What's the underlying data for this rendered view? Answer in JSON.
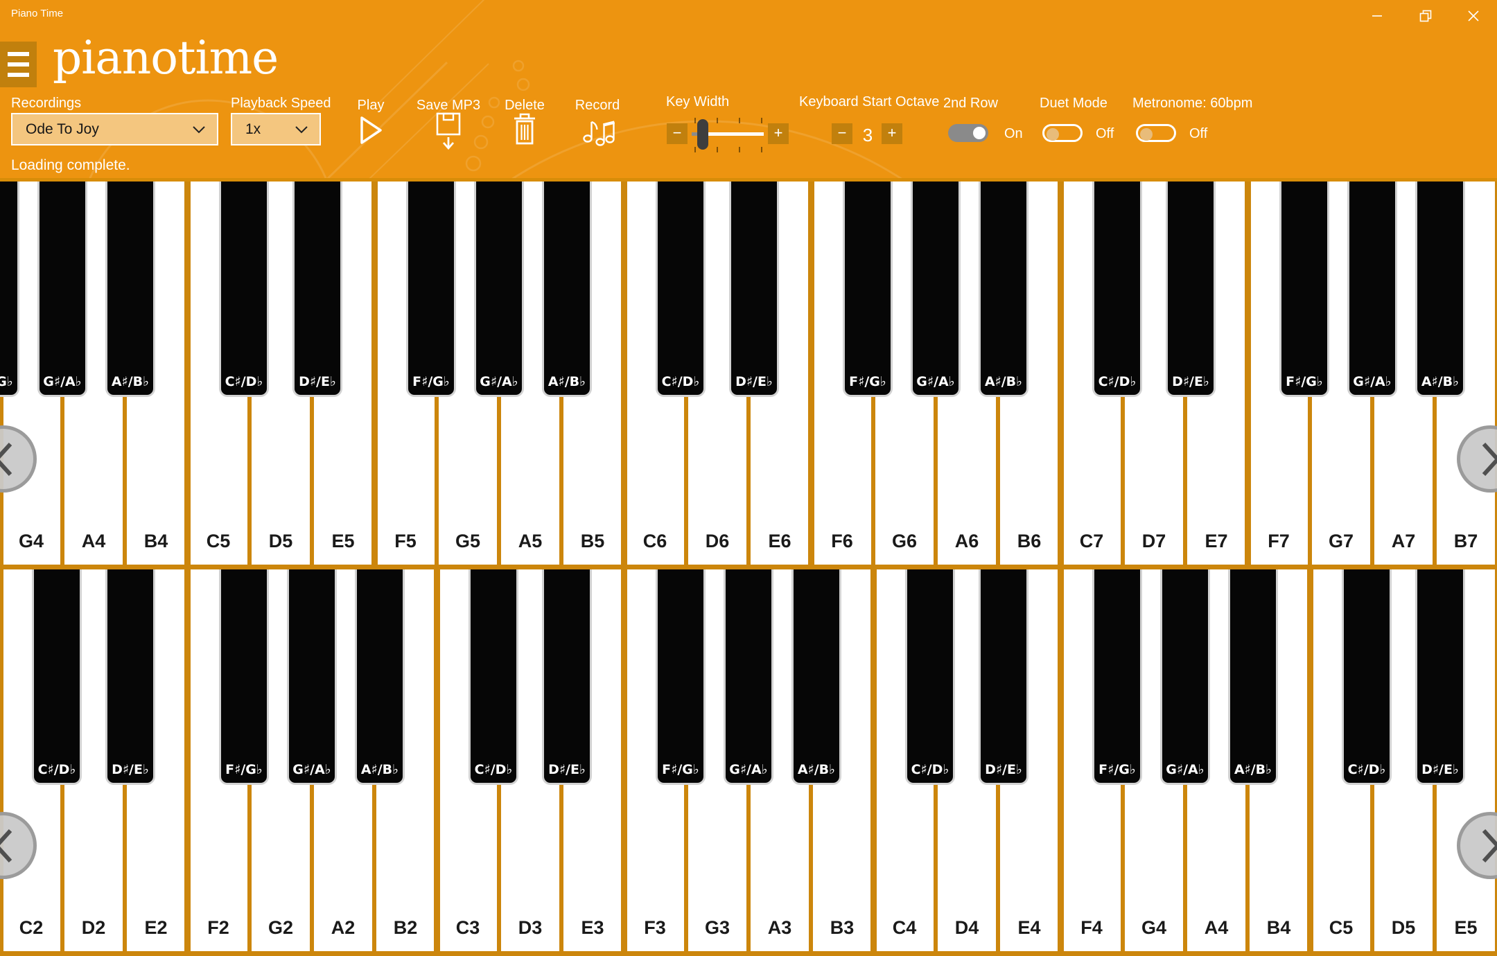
{
  "window": {
    "title": "Piano Time"
  },
  "header": {
    "logo": "pianotime"
  },
  "toolbar": {
    "recordings": {
      "label": "Recordings",
      "value": "Ode To Joy"
    },
    "playback_speed": {
      "label": "Playback Speed",
      "value": "1x"
    },
    "play": {
      "label": "Play"
    },
    "save_mp3": {
      "label": "Save MP3"
    },
    "delete": {
      "label": "Delete"
    },
    "record": {
      "label": "Record"
    },
    "key_width": {
      "label": "Key Width",
      "minus": "−",
      "plus": "+"
    },
    "start_octave": {
      "label": "Keyboard Start Octave",
      "minus": "−",
      "plus": "+",
      "value": "3"
    },
    "second_row": {
      "label": "2nd Row",
      "state": "On",
      "on": true
    },
    "duet_mode": {
      "label": "Duet Mode",
      "state": "Off",
      "on": false
    },
    "metronome": {
      "label": "Metronome: 60bpm",
      "state": "Off",
      "on": false
    }
  },
  "status": {
    "message": "Loading complete."
  },
  "colors": {
    "header_bg": "#ED9410",
    "control_bg": "#C1800D",
    "dropdown_bg": "#F4C67F",
    "key_separator": "#CC860C",
    "white_key": "#FFFFFF",
    "black_key": "#060606"
  },
  "keyboard": {
    "rows": [
      {
        "id": "top",
        "white": [
          "G4",
          "A4",
          "B4",
          "C5",
          "D5",
          "E5",
          "F5",
          "G5",
          "A5",
          "B5",
          "C6",
          "D6",
          "E6",
          "F6",
          "G6",
          "A6",
          "B6",
          "C7",
          "D7",
          "E7",
          "F7",
          "G7",
          "A7",
          "B7"
        ],
        "black": [
          {
            "l": "F♯/G♭",
            "b": -1,
            "o": -8
          },
          {
            "l": "G♯/A♭",
            "b": 0,
            "o": 0
          },
          {
            "l": "A♯/B♭",
            "b": 1,
            "o": 8
          },
          {
            "l": "C♯/D♭",
            "b": 3,
            "o": -8
          },
          {
            "l": "D♯/E♭",
            "b": 4,
            "o": 8
          },
          {
            "l": "F♯/G♭",
            "b": 6,
            "o": -8
          },
          {
            "l": "G♯/A♭",
            "b": 7,
            "o": 0
          },
          {
            "l": "A♯/B♭",
            "b": 8,
            "o": 8
          },
          {
            "l": "C♯/D♭",
            "b": 10,
            "o": -8
          },
          {
            "l": "D♯/E♭",
            "b": 11,
            "o": 8
          },
          {
            "l": "F♯/G♭",
            "b": 13,
            "o": -8
          },
          {
            "l": "G♯/A♭",
            "b": 14,
            "o": 0
          },
          {
            "l": "A♯/B♭",
            "b": 15,
            "o": 8
          },
          {
            "l": "C♯/D♭",
            "b": 17,
            "o": -8
          },
          {
            "l": "D♯/E♭",
            "b": 18,
            "o": 8
          },
          {
            "l": "F♯/G♭",
            "b": 20,
            "o": -8
          },
          {
            "l": "G♯/A♭",
            "b": 21,
            "o": 0
          },
          {
            "l": "A♯/B♭",
            "b": 22,
            "o": 8
          }
        ]
      },
      {
        "id": "bottom",
        "white": [
          "C2",
          "D2",
          "E2",
          "F2",
          "G2",
          "A2",
          "B2",
          "C3",
          "D3",
          "E3",
          "F3",
          "G3",
          "A3",
          "B3",
          "C4",
          "D4",
          "E4",
          "F4",
          "G4",
          "A4",
          "B4",
          "C5",
          "D5",
          "E5"
        ],
        "black": [
          {
            "l": "C♯/D♭",
            "b": 0,
            "o": -8
          },
          {
            "l": "D♯/E♭",
            "b": 1,
            "o": 8
          },
          {
            "l": "F♯/G♭",
            "b": 3,
            "o": -8
          },
          {
            "l": "G♯/A♭",
            "b": 4,
            "o": 0
          },
          {
            "l": "A♯/B♭",
            "b": 5,
            "o": 8
          },
          {
            "l": "C♯/D♭",
            "b": 7,
            "o": -8
          },
          {
            "l": "D♯/E♭",
            "b": 8,
            "o": 8
          },
          {
            "l": "F♯/G♭",
            "b": 10,
            "o": -8
          },
          {
            "l": "G♯/A♭",
            "b": 11,
            "o": 0
          },
          {
            "l": "A♯/B♭",
            "b": 12,
            "o": 8
          },
          {
            "l": "C♯/D♭",
            "b": 14,
            "o": -8
          },
          {
            "l": "D♯/E♭",
            "b": 15,
            "o": 8
          },
          {
            "l": "F♯/G♭",
            "b": 17,
            "o": -8
          },
          {
            "l": "G♯/A♭",
            "b": 18,
            "o": 0
          },
          {
            "l": "A♯/B♭",
            "b": 19,
            "o": 8
          },
          {
            "l": "C♯/D♭",
            "b": 21,
            "o": -8
          },
          {
            "l": "D♯/E♭",
            "b": 22,
            "o": 8
          }
        ]
      }
    ]
  }
}
